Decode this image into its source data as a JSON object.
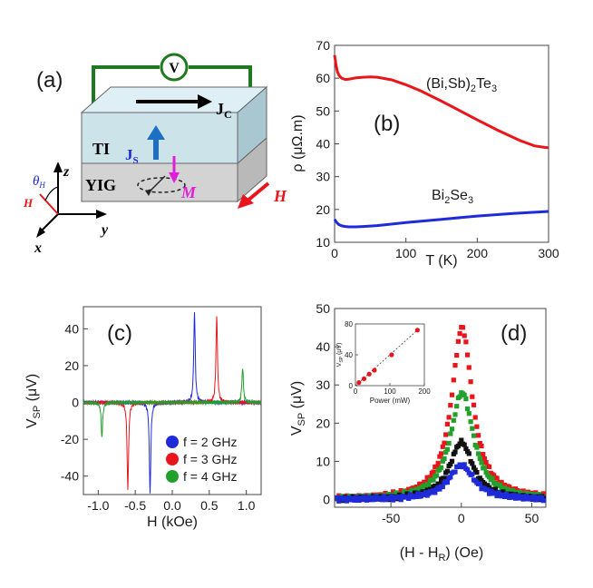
{
  "panel_a": {
    "label": "(a)",
    "voltmeter": "V",
    "current_label": "J",
    "current_sub": "C",
    "spin_label": "J",
    "spin_sub": "S",
    "layer_top": "TI",
    "layer_bottom": "YIG",
    "mag_label": "M",
    "field_label": "H",
    "axis_z": "z",
    "axis_y": "y",
    "axis_x": "x",
    "theta": "θ",
    "theta_sub": "H",
    "h_small": "H"
  },
  "chart_data": [
    {
      "id": "b",
      "type": "line",
      "panel_label": "(b)",
      "xlabel": "T (K)",
      "ylabel": "ρ (μΩ.m)",
      "xlim": [
        0,
        300
      ],
      "ylim": [
        10,
        70
      ],
      "xticks": [
        "0",
        "100",
        "200",
        "300"
      ],
      "yticks": [
        "10",
        "20",
        "30",
        "40",
        "50",
        "60",
        "70"
      ],
      "series": [
        {
          "name": "(Bi,Sb)2Te3",
          "color": "#e8161b",
          "x": [
            0,
            2,
            4,
            6,
            8,
            10,
            15,
            20,
            30,
            40,
            50,
            60,
            80,
            100,
            120,
            150,
            180,
            200,
            230,
            260,
            280,
            295,
            300
          ],
          "y": [
            67,
            64,
            62,
            61,
            60.4,
            60,
            59.6,
            59.7,
            60.1,
            60.3,
            60.4,
            60.3,
            59.5,
            58,
            56.2,
            53,
            49.6,
            47.3,
            44,
            41,
            39.4,
            38.9,
            38.8
          ]
        },
        {
          "name": "Bi2Se3",
          "color": "#1f2bd8",
          "x": [
            0,
            3,
            6,
            10,
            15,
            20,
            30,
            40,
            60,
            100,
            150,
            200,
            250,
            300
          ],
          "y": [
            17,
            16,
            15.4,
            15,
            14.8,
            14.7,
            14.7,
            14.8,
            15.1,
            16,
            17,
            18,
            18.8,
            19.4
          ]
        }
      ],
      "annotations": [
        {
          "text_main": "(Bi,Sb)",
          "text_sub": "2",
          "text_main2": "Te",
          "text_sub2": "3"
        },
        {
          "text_main": "Bi",
          "text_sub": "2",
          "text_main2": "Se",
          "text_sub2": "3"
        }
      ]
    },
    {
      "id": "c",
      "type": "line",
      "panel_label": "(c)",
      "xlabel": "H (kOe)",
      "ylabel_main": "V",
      "ylabel_sub": "SP",
      "ylabel_rest": " (μV)",
      "xlim": [
        -1.2,
        1.2
      ],
      "ylim": [
        -50,
        52
      ],
      "xticks": [
        "-1.0",
        "-0.5",
        "0.0",
        "0.5",
        "1.0"
      ],
      "yticks": [
        "-40",
        "-20",
        "0",
        "20",
        "40"
      ],
      "series": [
        {
          "name": "f = 2 GHz",
          "color": "#1f2bd8",
          "center": 0.3,
          "amplitude": 49,
          "width": 0.012
        },
        {
          "name": "f = 3 GHz",
          "color": "#e8161b",
          "center": 0.6,
          "amplitude": 47,
          "width": 0.012
        },
        {
          "name": "f = 4 GHz",
          "color": "#22a02c",
          "center": 0.95,
          "amplitude": 19,
          "width": 0.012
        }
      ],
      "legend_position": "bottom-right"
    },
    {
      "id": "d",
      "type": "scatter",
      "panel_label": "(d)",
      "xlabel_main": "(H - H",
      "xlabel_sub": "R",
      "xlabel_rest": ") (Oe)",
      "ylabel_main": "V",
      "ylabel_sub": "SP",
      "ylabel_rest": " (μV)",
      "xlim": [
        -90,
        60
      ],
      "ylim": [
        -2,
        50
      ],
      "xticks": [
        "-50",
        "0",
        "50"
      ],
      "yticks": [
        "0",
        "10",
        "20",
        "30",
        "40",
        "50"
      ],
      "series": [
        {
          "name": "red",
          "color": "#e8161b",
          "peak": 45,
          "width": 9,
          "shift": 0.5
        },
        {
          "name": "green",
          "color": "#22a02c",
          "peak": 28,
          "width": 10,
          "shift": 0.5
        },
        {
          "name": "black",
          "color": "#111111",
          "peak": 15,
          "width": 10,
          "shift": 0
        },
        {
          "name": "blue",
          "color": "#1f2bd8",
          "peak": 9,
          "width": 11,
          "shift": 0
        }
      ],
      "inset": {
        "xlabel": "Power (mW)",
        "ylabel": "V",
        "ylabel_sub": "SP",
        "ylabel_rest": " (μV)",
        "xlim": [
          0,
          200
        ],
        "ylim": [
          0,
          80
        ],
        "xticks": [
          "0",
          "100",
          "200"
        ],
        "yticks": [
          "0",
          "40",
          "80"
        ],
        "x": [
          10,
          25,
          40,
          55,
          105,
          180
        ],
        "y": [
          4,
          9,
          15,
          20,
          40,
          72
        ]
      }
    }
  ]
}
